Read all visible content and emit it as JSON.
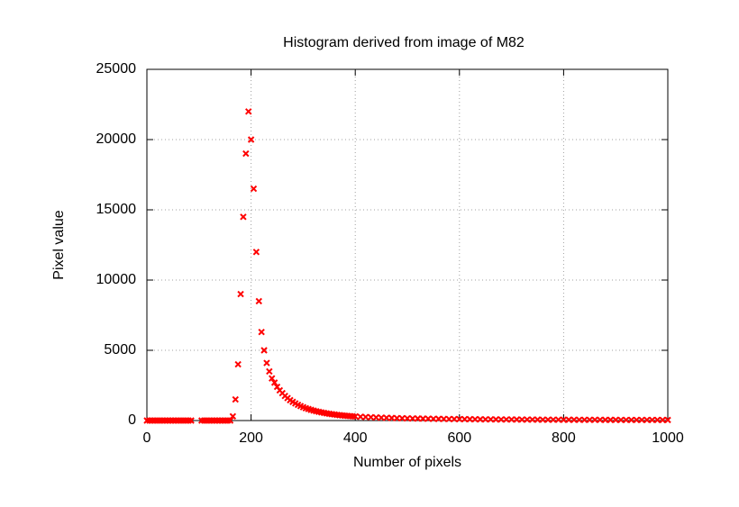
{
  "chart_data": {
    "type": "scatter",
    "title": "Histogram derived from image of M82",
    "xlabel": "Number of pixels",
    "ylabel": "Pixel value",
    "color": "#ff0000",
    "grid": true,
    "xlim": [
      0,
      1000
    ],
    "xticks": [
      0,
      200,
      400,
      600,
      800,
      1000
    ],
    "ylim": [
      0,
      25000
    ],
    "yticks": [
      0,
      5000,
      10000,
      15000,
      20000,
      25000
    ],
    "x": [
      0,
      5,
      10,
      15,
      20,
      25,
      30,
      35,
      40,
      45,
      50,
      55,
      60,
      65,
      70,
      75,
      80,
      85,
      105,
      110,
      115,
      120,
      125,
      130,
      135,
      140,
      145,
      150,
      155,
      160,
      165,
      170,
      175,
      180,
      185,
      190,
      195,
      200,
      205,
      210,
      215,
      220,
      225,
      230,
      235,
      240,
      245,
      250,
      255,
      260,
      265,
      270,
      275,
      280,
      285,
      290,
      295,
      300,
      305,
      310,
      315,
      320,
      325,
      330,
      335,
      340,
      345,
      350,
      355,
      360,
      365,
      370,
      375,
      380,
      385,
      390,
      395,
      400,
      410,
      420,
      430,
      440,
      450,
      460,
      470,
      480,
      490,
      500,
      510,
      520,
      530,
      540,
      550,
      560,
      570,
      580,
      590,
      600,
      610,
      620,
      630,
      640,
      650,
      660,
      670,
      680,
      690,
      700,
      710,
      720,
      730,
      740,
      750,
      760,
      770,
      780,
      790,
      800,
      810,
      820,
      830,
      840,
      850,
      860,
      870,
      880,
      890,
      900,
      910,
      920,
      930,
      940,
      950,
      960,
      970,
      980,
      990,
      1000
    ],
    "values": [
      0,
      0,
      0,
      0,
      0,
      0,
      0,
      0,
      0,
      0,
      0,
      0,
      0,
      0,
      0,
      0,
      0,
      0,
      0,
      0,
      0,
      0,
      0,
      0,
      0,
      0,
      0,
      0,
      0,
      0,
      300,
      1500,
      4000,
      9000,
      14500,
      19000,
      22000,
      20000,
      16500,
      12000,
      8500,
      6300,
      5000,
      4100,
      3500,
      3000,
      2700,
      2400,
      2150,
      1950,
      1750,
      1600,
      1450,
      1330,
      1220,
      1120,
      1030,
      950,
      880,
      820,
      760,
      710,
      660,
      620,
      580,
      545,
      510,
      480,
      455,
      430,
      405,
      385,
      365,
      345,
      330,
      315,
      300,
      290,
      270,
      250,
      235,
      220,
      205,
      195,
      185,
      175,
      165,
      158,
      150,
      143,
      137,
      131,
      125,
      120,
      115,
      110,
      106,
      102,
      98,
      95,
      92,
      89,
      86,
      83,
      80,
      78,
      76,
      74,
      72,
      70,
      68,
      66,
      64,
      62,
      61,
      60,
      58,
      57,
      56,
      55,
      54,
      53,
      52,
      51,
      50,
      49,
      48,
      47,
      46,
      45,
      45,
      44,
      43,
      43,
      42,
      42,
      41,
      40
    ]
  }
}
